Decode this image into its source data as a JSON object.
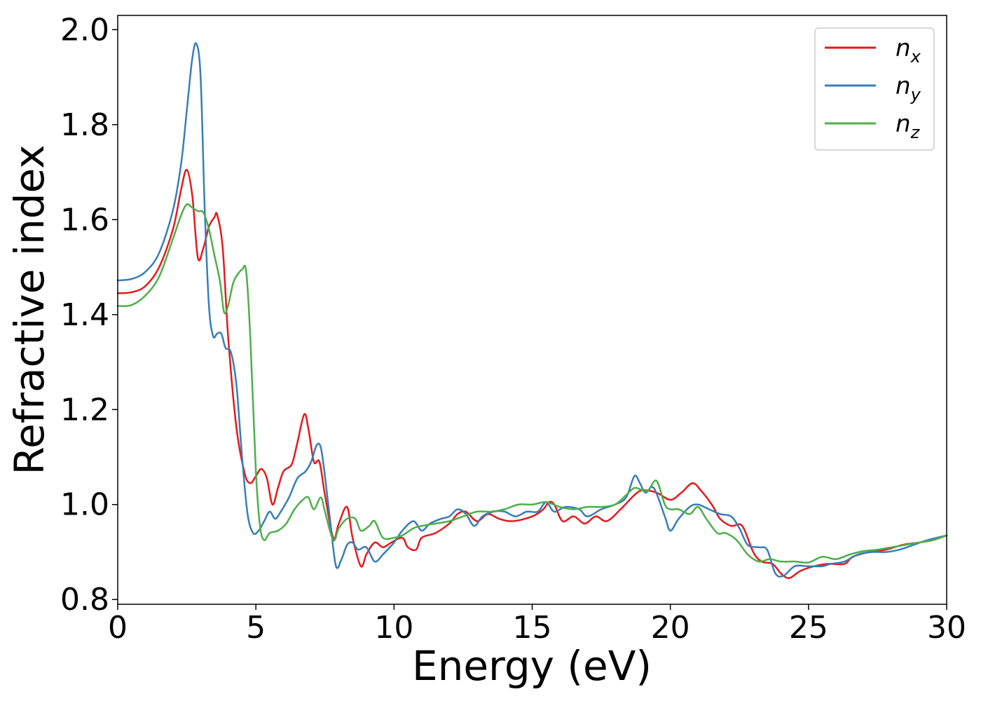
{
  "chart_data": {
    "type": "line",
    "xlabel": "Energy (eV)",
    "ylabel": "Refractive index",
    "xlim": [
      0,
      30
    ],
    "ylim": [
      0.79,
      2.03
    ],
    "xticks": [
      "0",
      "5",
      "10",
      "15",
      "20",
      "25",
      "30"
    ],
    "yticks": [
      "0.8",
      "1.0",
      "1.2",
      "1.4",
      "1.6",
      "1.8",
      "2.0"
    ],
    "grid": false,
    "legend": "top-right",
    "series": [
      {
        "name": "n",
        "subscript": "x",
        "color": "#e41a1c",
        "points": [
          [
            0,
            1.445
          ],
          [
            0.5,
            1.447
          ],
          [
            1,
            1.46
          ],
          [
            1.5,
            1.5
          ],
          [
            2,
            1.58
          ],
          [
            2.3,
            1.665
          ],
          [
            2.5,
            1.705
          ],
          [
            2.7,
            1.65
          ],
          [
            2.9,
            1.52
          ],
          [
            3.1,
            1.54
          ],
          [
            3.3,
            1.585
          ],
          [
            3.5,
            1.605
          ],
          [
            3.6,
            1.61
          ],
          [
            3.8,
            1.54
          ],
          [
            4.0,
            1.35
          ],
          [
            4.3,
            1.16
          ],
          [
            4.6,
            1.065
          ],
          [
            4.8,
            1.045
          ],
          [
            5.0,
            1.06
          ],
          [
            5.2,
            1.075
          ],
          [
            5.4,
            1.055
          ],
          [
            5.6,
            1.0
          ],
          [
            5.8,
            1.035
          ],
          [
            6.0,
            1.07
          ],
          [
            6.3,
            1.085
          ],
          [
            6.5,
            1.13
          ],
          [
            6.75,
            1.19
          ],
          [
            6.9,
            1.16
          ],
          [
            7.1,
            1.09
          ],
          [
            7.3,
            1.09
          ],
          [
            7.5,
            1.02
          ],
          [
            7.8,
            0.93
          ],
          [
            8.0,
            0.96
          ],
          [
            8.3,
            0.995
          ],
          [
            8.5,
            0.93
          ],
          [
            8.8,
            0.87
          ],
          [
            9.0,
            0.895
          ],
          [
            9.3,
            0.92
          ],
          [
            9.6,
            0.91
          ],
          [
            9.9,
            0.92
          ],
          [
            10.3,
            0.93
          ],
          [
            10.5,
            0.91
          ],
          [
            10.8,
            0.905
          ],
          [
            11.0,
            0.93
          ],
          [
            11.5,
            0.94
          ],
          [
            12.0,
            0.96
          ],
          [
            12.3,
            0.98
          ],
          [
            12.6,
            0.985
          ],
          [
            13.0,
            0.965
          ],
          [
            13.4,
            0.98
          ],
          [
            13.8,
            0.97
          ],
          [
            14.3,
            0.965
          ],
          [
            15.0,
            0.975
          ],
          [
            15.4,
            0.99
          ],
          [
            15.6,
            1.005
          ],
          [
            15.8,
            1.0
          ],
          [
            16.1,
            0.965
          ],
          [
            16.5,
            0.975
          ],
          [
            16.9,
            0.96
          ],
          [
            17.3,
            0.975
          ],
          [
            17.7,
            0.965
          ],
          [
            18.2,
            0.99
          ],
          [
            18.7,
            1.02
          ],
          [
            19.0,
            1.03
          ],
          [
            19.5,
            1.025
          ],
          [
            20.0,
            1.01
          ],
          [
            20.4,
            1.025
          ],
          [
            20.8,
            1.045
          ],
          [
            21.1,
            1.03
          ],
          [
            21.5,
            1.0
          ],
          [
            21.8,
            0.97
          ],
          [
            22.2,
            0.955
          ],
          [
            22.6,
            0.955
          ],
          [
            23.0,
            0.9
          ],
          [
            23.3,
            0.88
          ],
          [
            23.7,
            0.875
          ],
          [
            24.0,
            0.855
          ],
          [
            24.3,
            0.845
          ],
          [
            24.7,
            0.86
          ],
          [
            25.2,
            0.87
          ],
          [
            25.7,
            0.875
          ],
          [
            26.3,
            0.875
          ],
          [
            26.6,
            0.89
          ],
          [
            27.2,
            0.9
          ],
          [
            27.8,
            0.905
          ],
          [
            28.4,
            0.915
          ],
          [
            29.0,
            0.92
          ],
          [
            29.5,
            0.925
          ],
          [
            30,
            0.935
          ]
        ]
      },
      {
        "name": "n",
        "subscript": "y",
        "color": "#377eb8",
        "points": [
          [
            0,
            1.472
          ],
          [
            0.5,
            1.475
          ],
          [
            1,
            1.49
          ],
          [
            1.5,
            1.53
          ],
          [
            2,
            1.62
          ],
          [
            2.3,
            1.72
          ],
          [
            2.5,
            1.83
          ],
          [
            2.7,
            1.94
          ],
          [
            2.85,
            1.97
          ],
          [
            3.0,
            1.9
          ],
          [
            3.15,
            1.62
          ],
          [
            3.3,
            1.42
          ],
          [
            3.45,
            1.355
          ],
          [
            3.6,
            1.36
          ],
          [
            3.75,
            1.36
          ],
          [
            3.9,
            1.33
          ],
          [
            4.1,
            1.32
          ],
          [
            4.3,
            1.25
          ],
          [
            4.5,
            1.1
          ],
          [
            4.7,
            0.98
          ],
          [
            4.9,
            0.94
          ],
          [
            5.1,
            0.945
          ],
          [
            5.3,
            0.965
          ],
          [
            5.5,
            0.985
          ],
          [
            5.7,
            0.97
          ],
          [
            5.9,
            0.985
          ],
          [
            6.2,
            1.015
          ],
          [
            6.5,
            1.055
          ],
          [
            6.8,
            1.07
          ],
          [
            7.0,
            1.09
          ],
          [
            7.2,
            1.125
          ],
          [
            7.35,
            1.12
          ],
          [
            7.5,
            1.06
          ],
          [
            7.7,
            0.96
          ],
          [
            7.9,
            0.87
          ],
          [
            8.1,
            0.885
          ],
          [
            8.3,
            0.915
          ],
          [
            8.5,
            0.92
          ],
          [
            8.7,
            0.905
          ],
          [
            9.0,
            0.91
          ],
          [
            9.3,
            0.88
          ],
          [
            9.6,
            0.895
          ],
          [
            10.0,
            0.92
          ],
          [
            10.3,
            0.945
          ],
          [
            10.7,
            0.965
          ],
          [
            11.0,
            0.945
          ],
          [
            11.3,
            0.96
          ],
          [
            11.7,
            0.97
          ],
          [
            12.0,
            0.975
          ],
          [
            12.3,
            0.99
          ],
          [
            12.6,
            0.98
          ],
          [
            12.9,
            0.955
          ],
          [
            13.2,
            0.975
          ],
          [
            13.6,
            0.985
          ],
          [
            14.0,
            0.985
          ],
          [
            14.4,
            0.975
          ],
          [
            14.8,
            0.985
          ],
          [
            15.2,
            0.985
          ],
          [
            15.5,
            1.005
          ],
          [
            15.8,
            0.985
          ],
          [
            16.2,
            0.995
          ],
          [
            16.7,
            0.99
          ],
          [
            17.0,
            0.975
          ],
          [
            17.5,
            0.99
          ],
          [
            18.0,
            1.0
          ],
          [
            18.4,
            1.015
          ],
          [
            18.7,
            1.06
          ],
          [
            18.9,
            1.045
          ],
          [
            19.1,
            1.025
          ],
          [
            19.4,
            1.035
          ],
          [
            19.8,
            0.975
          ],
          [
            20.0,
            0.945
          ],
          [
            20.3,
            0.97
          ],
          [
            20.7,
            0.995
          ],
          [
            21.0,
            1.0
          ],
          [
            21.4,
            0.99
          ],
          [
            21.8,
            0.98
          ],
          [
            22.2,
            0.975
          ],
          [
            22.5,
            0.95
          ],
          [
            22.8,
            0.915
          ],
          [
            23.2,
            0.91
          ],
          [
            23.5,
            0.905
          ],
          [
            23.8,
            0.855
          ],
          [
            24.1,
            0.85
          ],
          [
            24.5,
            0.87
          ],
          [
            25.0,
            0.87
          ],
          [
            25.5,
            0.87
          ],
          [
            25.8,
            0.875
          ],
          [
            26.3,
            0.88
          ],
          [
            26.8,
            0.895
          ],
          [
            27.3,
            0.9
          ],
          [
            27.8,
            0.9
          ],
          [
            28.3,
            0.905
          ],
          [
            28.8,
            0.915
          ],
          [
            29.3,
            0.925
          ],
          [
            30,
            0.935
          ]
        ]
      },
      {
        "name": "n",
        "subscript": "z",
        "color": "#4daf4a",
        "points": [
          [
            0,
            1.418
          ],
          [
            0.5,
            1.42
          ],
          [
            1,
            1.44
          ],
          [
            1.5,
            1.48
          ],
          [
            2,
            1.56
          ],
          [
            2.3,
            1.61
          ],
          [
            2.5,
            1.632
          ],
          [
            2.7,
            1.625
          ],
          [
            2.9,
            1.618
          ],
          [
            3.1,
            1.615
          ],
          [
            3.3,
            1.58
          ],
          [
            3.5,
            1.525
          ],
          [
            3.7,
            1.47
          ],
          [
            3.85,
            1.405
          ],
          [
            4.0,
            1.42
          ],
          [
            4.2,
            1.47
          ],
          [
            4.5,
            1.495
          ],
          [
            4.65,
            1.49
          ],
          [
            4.8,
            1.35
          ],
          [
            5.0,
            1.07
          ],
          [
            5.15,
            0.955
          ],
          [
            5.3,
            0.925
          ],
          [
            5.5,
            0.94
          ],
          [
            5.8,
            0.945
          ],
          [
            6.1,
            0.96
          ],
          [
            6.4,
            0.99
          ],
          [
            6.7,
            1.01
          ],
          [
            6.9,
            1.015
          ],
          [
            7.1,
            0.99
          ],
          [
            7.35,
            1.015
          ],
          [
            7.5,
            0.985
          ],
          [
            7.8,
            0.925
          ],
          [
            8.0,
            0.95
          ],
          [
            8.3,
            0.97
          ],
          [
            8.6,
            0.97
          ],
          [
            8.8,
            0.945
          ],
          [
            9.1,
            0.955
          ],
          [
            9.3,
            0.965
          ],
          [
            9.6,
            0.93
          ],
          [
            10.0,
            0.93
          ],
          [
            10.3,
            0.935
          ],
          [
            10.7,
            0.95
          ],
          [
            11.0,
            0.955
          ],
          [
            11.5,
            0.96
          ],
          [
            12.0,
            0.965
          ],
          [
            12.5,
            0.975
          ],
          [
            13.0,
            0.985
          ],
          [
            13.5,
            0.985
          ],
          [
            14.0,
            0.99
          ],
          [
            14.5,
            1.0
          ],
          [
            15.0,
            1.0
          ],
          [
            15.5,
            1.005
          ],
          [
            16.0,
            0.995
          ],
          [
            16.5,
            0.99
          ],
          [
            17.0,
            0.995
          ],
          [
            17.5,
            0.995
          ],
          [
            18.0,
            1.0
          ],
          [
            18.4,
            1.02
          ],
          [
            18.7,
            1.035
          ],
          [
            19.0,
            1.03
          ],
          [
            19.2,
            1.03
          ],
          [
            19.5,
            1.05
          ],
          [
            19.8,
            1.0
          ],
          [
            20.0,
            0.99
          ],
          [
            20.3,
            0.99
          ],
          [
            20.7,
            0.98
          ],
          [
            21.0,
            0.995
          ],
          [
            21.3,
            0.97
          ],
          [
            21.7,
            0.94
          ],
          [
            22.0,
            0.94
          ],
          [
            22.4,
            0.925
          ],
          [
            22.8,
            0.895
          ],
          [
            23.2,
            0.88
          ],
          [
            23.6,
            0.885
          ],
          [
            24.0,
            0.88
          ],
          [
            24.5,
            0.88
          ],
          [
            25.0,
            0.878
          ],
          [
            25.5,
            0.89
          ],
          [
            26.0,
            0.885
          ],
          [
            26.5,
            0.895
          ],
          [
            27.0,
            0.902
          ],
          [
            27.5,
            0.905
          ],
          [
            28.0,
            0.91
          ],
          [
            28.5,
            0.915
          ],
          [
            29.0,
            0.92
          ],
          [
            29.5,
            0.925
          ],
          [
            30,
            0.935
          ]
        ]
      }
    ]
  }
}
